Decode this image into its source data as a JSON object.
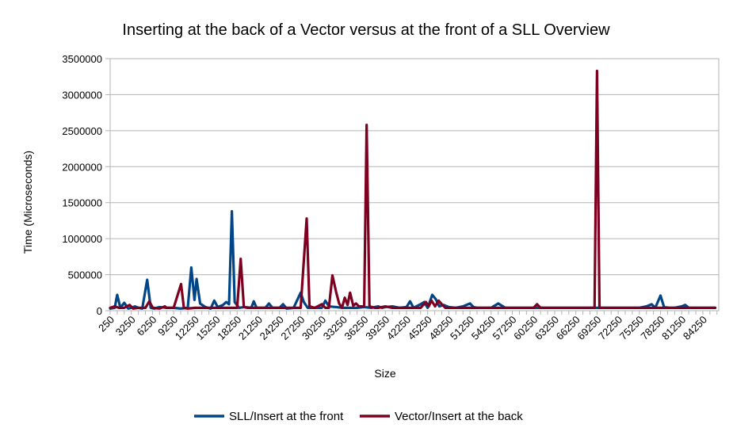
{
  "chart_data": {
    "type": "line",
    "title": "Inserting at the back of a Vector versus at the front of a SLL Overview",
    "xlabel": "Size",
    "ylabel": "Time (Microseconds)",
    "ylim": [
      0,
      3500000
    ],
    "yticks": [
      0,
      500000,
      1000000,
      1500000,
      2000000,
      2500000,
      3000000,
      3500000
    ],
    "ytick_labels": [
      "0",
      "500000",
      "1000000",
      "1500000",
      "2000000",
      "2500000",
      "3000000",
      "3500000"
    ],
    "xlim": [
      250,
      86500
    ],
    "xticks": [
      250,
      3250,
      6250,
      9250,
      12250,
      15250,
      18250,
      21250,
      24250,
      27250,
      30250,
      33250,
      36250,
      39250,
      42250,
      45250,
      48250,
      51250,
      54250,
      57250,
      60250,
      63250,
      66250,
      69250,
      72250,
      75250,
      78250,
      81250,
      84250
    ],
    "xtick_labels": [
      "250",
      "3250",
      "6250",
      "9250",
      "12250",
      "15250",
      "18250",
      "21250",
      "24250",
      "27250",
      "30250",
      "33250",
      "36250",
      "39250",
      "42250",
      "45250",
      "48250",
      "51250",
      "54250",
      "57250",
      "60250",
      "63250",
      "66250",
      "69250",
      "72250",
      "75250",
      "78250",
      "81250",
      "84250"
    ],
    "grid": true,
    "legend_position": "bottom",
    "series": [
      {
        "name": "SLL/Insert at the front",
        "color": "#004586",
        "points": [
          [
            250,
            30000
          ],
          [
            900,
            40000
          ],
          [
            1250,
            220000
          ],
          [
            1700,
            40000
          ],
          [
            2250,
            110000
          ],
          [
            2800,
            30000
          ],
          [
            3250,
            40000
          ],
          [
            3750,
            60000
          ],
          [
            4250,
            40000
          ],
          [
            4800,
            30000
          ],
          [
            5500,
            430000
          ],
          [
            6000,
            40000
          ],
          [
            6500,
            30000
          ],
          [
            7250,
            50000
          ],
          [
            8250,
            40000
          ],
          [
            9250,
            40000
          ],
          [
            10250,
            30000
          ],
          [
            11250,
            40000
          ],
          [
            11750,
            600000
          ],
          [
            12200,
            150000
          ],
          [
            12500,
            440000
          ],
          [
            13000,
            100000
          ],
          [
            13750,
            50000
          ],
          [
            14500,
            30000
          ],
          [
            15000,
            140000
          ],
          [
            15500,
            50000
          ],
          [
            16250,
            80000
          ],
          [
            16700,
            120000
          ],
          [
            17100,
            90000
          ],
          [
            17500,
            1380000
          ],
          [
            17900,
            120000
          ],
          [
            18500,
            40000
          ],
          [
            19250,
            50000
          ],
          [
            20250,
            40000
          ],
          [
            20600,
            130000
          ],
          [
            21000,
            40000
          ],
          [
            22250,
            40000
          ],
          [
            22750,
            100000
          ],
          [
            23250,
            40000
          ],
          [
            24250,
            40000
          ],
          [
            24750,
            90000
          ],
          [
            25250,
            30000
          ],
          [
            26250,
            40000
          ],
          [
            27250,
            250000
          ],
          [
            27700,
            120000
          ],
          [
            28250,
            40000
          ],
          [
            29250,
            40000
          ],
          [
            30250,
            40000
          ],
          [
            30750,
            140000
          ],
          [
            31250,
            60000
          ],
          [
            32250,
            50000
          ],
          [
            33250,
            40000
          ],
          [
            34250,
            40000
          ],
          [
            35250,
            40000
          ],
          [
            36250,
            50000
          ],
          [
            37250,
            40000
          ],
          [
            38250,
            60000
          ],
          [
            38750,
            40000
          ],
          [
            39250,
            50000
          ],
          [
            40250,
            60000
          ],
          [
            41250,
            40000
          ],
          [
            42250,
            50000
          ],
          [
            42750,
            130000
          ],
          [
            43250,
            40000
          ],
          [
            44250,
            90000
          ],
          [
            44750,
            120000
          ],
          [
            45250,
            40000
          ],
          [
            45900,
            220000
          ],
          [
            46400,
            160000
          ],
          [
            46900,
            60000
          ],
          [
            47500,
            80000
          ],
          [
            48250,
            50000
          ],
          [
            49250,
            40000
          ],
          [
            50250,
            60000
          ],
          [
            51250,
            100000
          ],
          [
            51750,
            50000
          ],
          [
            52250,
            40000
          ],
          [
            53250,
            40000
          ],
          [
            54250,
            40000
          ],
          [
            55250,
            100000
          ],
          [
            56250,
            40000
          ],
          [
            57250,
            40000
          ],
          [
            58250,
            40000
          ],
          [
            59250,
            40000
          ],
          [
            60250,
            40000
          ],
          [
            61250,
            40000
          ],
          [
            62250,
            40000
          ],
          [
            63250,
            40000
          ],
          [
            64250,
            40000
          ],
          [
            65250,
            40000
          ],
          [
            66250,
            40000
          ],
          [
            67250,
            40000
          ],
          [
            68250,
            40000
          ],
          [
            69250,
            40000
          ],
          [
            70250,
            40000
          ],
          [
            71250,
            40000
          ],
          [
            72250,
            40000
          ],
          [
            73250,
            40000
          ],
          [
            74250,
            40000
          ],
          [
            75250,
            40000
          ],
          [
            76250,
            60000
          ],
          [
            77000,
            90000
          ],
          [
            77500,
            40000
          ],
          [
            78250,
            210000
          ],
          [
            78750,
            50000
          ],
          [
            79500,
            40000
          ],
          [
            80250,
            40000
          ],
          [
            81250,
            60000
          ],
          [
            81750,
            80000
          ],
          [
            82250,
            40000
          ],
          [
            83250,
            40000
          ],
          [
            84250,
            40000
          ],
          [
            85250,
            40000
          ],
          [
            86000,
            40000
          ]
        ]
      },
      {
        "name": "Vector/Insert at the back",
        "color": "#7e0021",
        "points": [
          [
            250,
            40000
          ],
          [
            900,
            60000
          ],
          [
            1500,
            40000
          ],
          [
            2250,
            40000
          ],
          [
            3000,
            80000
          ],
          [
            3500,
            30000
          ],
          [
            4250,
            40000
          ],
          [
            5250,
            40000
          ],
          [
            5800,
            130000
          ],
          [
            6300,
            40000
          ],
          [
            7250,
            30000
          ],
          [
            8000,
            60000
          ],
          [
            8250,
            40000
          ],
          [
            9000,
            40000
          ],
          [
            9250,
            40000
          ],
          [
            10300,
            370000
          ],
          [
            10700,
            40000
          ],
          [
            11250,
            30000
          ],
          [
            12250,
            40000
          ],
          [
            13250,
            40000
          ],
          [
            14250,
            40000
          ],
          [
            15250,
            40000
          ],
          [
            16250,
            40000
          ],
          [
            17250,
            40000
          ],
          [
            18250,
            40000
          ],
          [
            18750,
            720000
          ],
          [
            19200,
            50000
          ],
          [
            19750,
            40000
          ],
          [
            20250,
            40000
          ],
          [
            21250,
            40000
          ],
          [
            22250,
            40000
          ],
          [
            23250,
            40000
          ],
          [
            24250,
            40000
          ],
          [
            25250,
            40000
          ],
          [
            26250,
            40000
          ],
          [
            27250,
            40000
          ],
          [
            28100,
            1280000
          ],
          [
            28500,
            60000
          ],
          [
            29250,
            40000
          ],
          [
            30250,
            90000
          ],
          [
            30750,
            40000
          ],
          [
            31250,
            40000
          ],
          [
            31750,
            490000
          ],
          [
            32300,
            250000
          ],
          [
            32700,
            100000
          ],
          [
            33100,
            40000
          ],
          [
            33500,
            180000
          ],
          [
            33900,
            80000
          ],
          [
            34250,
            250000
          ],
          [
            34700,
            70000
          ],
          [
            35100,
            100000
          ],
          [
            35500,
            60000
          ],
          [
            36250,
            60000
          ],
          [
            36600,
            2580000
          ],
          [
            37000,
            60000
          ],
          [
            37750,
            40000
          ],
          [
            38250,
            40000
          ],
          [
            39250,
            60000
          ],
          [
            40250,
            40000
          ],
          [
            41250,
            40000
          ],
          [
            42250,
            40000
          ],
          [
            43250,
            40000
          ],
          [
            44250,
            40000
          ],
          [
            45000,
            120000
          ],
          [
            45400,
            60000
          ],
          [
            45800,
            140000
          ],
          [
            46300,
            60000
          ],
          [
            46800,
            140000
          ],
          [
            47250,
            90000
          ],
          [
            47750,
            40000
          ],
          [
            48250,
            40000
          ],
          [
            49250,
            40000
          ],
          [
            50250,
            40000
          ],
          [
            51250,
            40000
          ],
          [
            52250,
            40000
          ],
          [
            53250,
            40000
          ],
          [
            54250,
            40000
          ],
          [
            55250,
            40000
          ],
          [
            56250,
            40000
          ],
          [
            57250,
            40000
          ],
          [
            58250,
            40000
          ],
          [
            59250,
            40000
          ],
          [
            60250,
            40000
          ],
          [
            60750,
            90000
          ],
          [
            61250,
            40000
          ],
          [
            62250,
            40000
          ],
          [
            63250,
            40000
          ],
          [
            64250,
            40000
          ],
          [
            65250,
            40000
          ],
          [
            66250,
            40000
          ],
          [
            67250,
            40000
          ],
          [
            68250,
            40000
          ],
          [
            68900,
            40000
          ],
          [
            69250,
            3330000
          ],
          [
            69600,
            40000
          ],
          [
            70250,
            40000
          ],
          [
            71250,
            40000
          ],
          [
            72250,
            40000
          ],
          [
            73250,
            40000
          ],
          [
            74250,
            40000
          ],
          [
            75250,
            40000
          ],
          [
            76250,
            40000
          ],
          [
            77250,
            40000
          ],
          [
            78250,
            40000
          ],
          [
            79250,
            40000
          ],
          [
            80250,
            40000
          ],
          [
            81250,
            40000
          ],
          [
            82250,
            40000
          ],
          [
            83250,
            40000
          ],
          [
            84250,
            40000
          ],
          [
            85250,
            40000
          ],
          [
            86000,
            40000
          ]
        ]
      }
    ]
  }
}
